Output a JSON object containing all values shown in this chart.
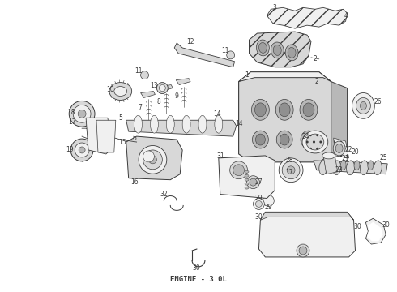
{
  "title": "ENGINE - 3.0L",
  "title_fontsize": 6.5,
  "title_fontweight": "bold",
  "title_family": "monospace",
  "background_color": "#ffffff",
  "fig_width": 4.9,
  "fig_height": 3.6,
  "dpi": 100,
  "line_color": "#3a3a3a",
  "light_fill": "#f0f0f0",
  "mid_fill": "#d8d8d8",
  "dark_fill": "#b8b8b8"
}
